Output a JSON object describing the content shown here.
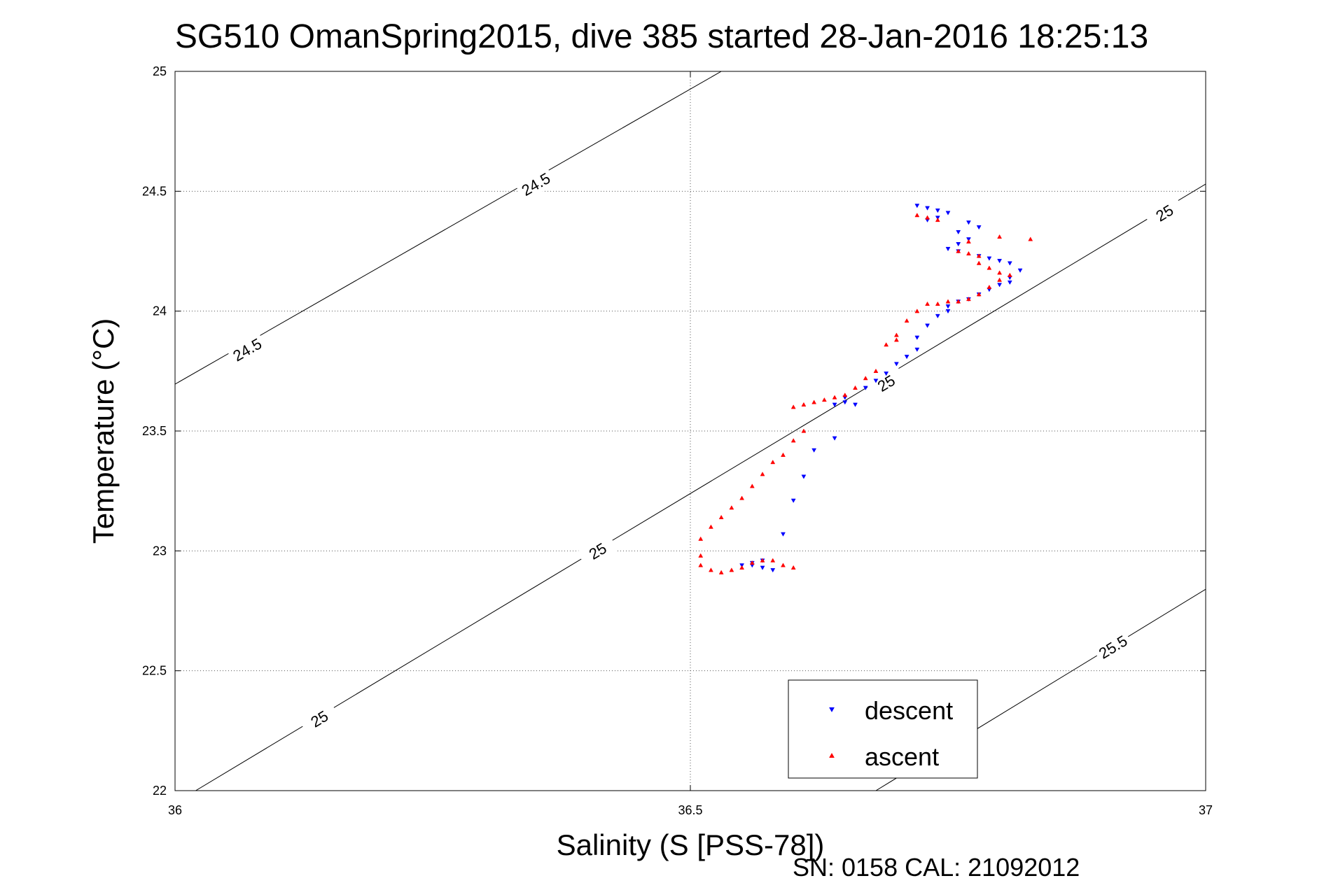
{
  "chart_data": {
    "type": "scatter",
    "title": "SG510 OmanSpring2015, dive 385 started 28-Jan-2016 18:25:13",
    "xlabel": "Salinity (S [PSS-78])",
    "ylabel": "Temperature (°C)",
    "xlim": [
      36,
      37
    ],
    "ylim": [
      22,
      25
    ],
    "xticks": [
      36,
      36.5,
      37
    ],
    "yticks": [
      22,
      22.5,
      23,
      23.5,
      24,
      24.5,
      25
    ],
    "xtick_labels": [
      "36",
      "36.5",
      "37"
    ],
    "ytick_labels": [
      "22",
      "22.5",
      "23",
      "23.5",
      "24",
      "24.5",
      "25"
    ],
    "grid": true,
    "legend_position": "bottom-right",
    "footer": "SN: 0158  CAL: 21092012",
    "density_contours": [
      {
        "label": "24.5",
        "points": [
          [
            35.88,
            23.4
          ],
          [
            36.53,
            25.0
          ]
        ],
        "label_positions": [
          [
            36.07,
            23.84
          ],
          [
            36.35,
            24.53
          ]
        ]
      },
      {
        "label": "25",
        "points": [
          [
            36.02,
            22.0
          ],
          [
            37.0,
            24.53
          ]
        ],
        "label_positions": [
          [
            36.14,
            22.3
          ],
          [
            36.41,
            23.0
          ],
          [
            36.69,
            23.7
          ],
          [
            36.96,
            24.41
          ]
        ]
      },
      {
        "label": "25.5",
        "points": [
          [
            36.68,
            22.0
          ],
          [
            37.0,
            22.84
          ]
        ],
        "label_positions": [
          [
            36.91,
            22.6
          ]
        ]
      }
    ],
    "series": [
      {
        "name": "descent",
        "color": "#0000ff",
        "marker": "triangle-down",
        "points": [
          [
            36.72,
            24.44
          ],
          [
            36.73,
            24.43
          ],
          [
            36.74,
            24.42
          ],
          [
            36.75,
            24.41
          ],
          [
            36.74,
            24.39
          ],
          [
            36.73,
            24.38
          ],
          [
            36.77,
            24.37
          ],
          [
            36.78,
            24.35
          ],
          [
            36.76,
            24.33
          ],
          [
            36.77,
            24.3
          ],
          [
            36.76,
            24.28
          ],
          [
            36.75,
            24.26
          ],
          [
            36.76,
            24.25
          ],
          [
            36.78,
            24.23
          ],
          [
            36.79,
            24.22
          ],
          [
            36.8,
            24.21
          ],
          [
            36.81,
            24.2
          ],
          [
            36.82,
            24.17
          ],
          [
            36.81,
            24.14
          ],
          [
            36.81,
            24.12
          ],
          [
            36.8,
            24.11
          ],
          [
            36.79,
            24.09
          ],
          [
            36.78,
            24.07
          ],
          [
            36.77,
            24.05
          ],
          [
            36.76,
            24.04
          ],
          [
            36.75,
            24.02
          ],
          [
            36.75,
            24.0
          ],
          [
            36.74,
            23.98
          ],
          [
            36.73,
            23.94
          ],
          [
            36.72,
            23.89
          ],
          [
            36.72,
            23.84
          ],
          [
            36.71,
            23.81
          ],
          [
            36.7,
            23.78
          ],
          [
            36.69,
            23.74
          ],
          [
            36.68,
            23.71
          ],
          [
            36.67,
            23.68
          ],
          [
            36.65,
            23.62
          ],
          [
            36.66,
            23.61
          ],
          [
            36.64,
            23.61
          ],
          [
            36.65,
            23.64
          ],
          [
            36.64,
            23.47
          ],
          [
            36.62,
            23.42
          ],
          [
            36.61,
            23.31
          ],
          [
            36.6,
            23.21
          ],
          [
            36.59,
            23.07
          ],
          [
            36.57,
            22.96
          ],
          [
            36.56,
            22.95
          ],
          [
            36.55,
            22.94
          ],
          [
            36.57,
            22.93
          ],
          [
            36.58,
            22.92
          ],
          [
            36.56,
            22.94
          ]
        ]
      },
      {
        "name": "ascent",
        "color": "#ff0000",
        "marker": "triangle-up",
        "points": [
          [
            36.72,
            24.4
          ],
          [
            36.73,
            24.39
          ],
          [
            36.74,
            24.38
          ],
          [
            36.8,
            24.31
          ],
          [
            36.83,
            24.3
          ],
          [
            36.77,
            24.29
          ],
          [
            36.76,
            24.25
          ],
          [
            36.77,
            24.24
          ],
          [
            36.78,
            24.23
          ],
          [
            36.78,
            24.2
          ],
          [
            36.79,
            24.18
          ],
          [
            36.8,
            24.16
          ],
          [
            36.81,
            24.15
          ],
          [
            36.8,
            24.13
          ],
          [
            36.79,
            24.1
          ],
          [
            36.78,
            24.07
          ],
          [
            36.77,
            24.05
          ],
          [
            36.76,
            24.04
          ],
          [
            36.75,
            24.04
          ],
          [
            36.74,
            24.03
          ],
          [
            36.73,
            24.03
          ],
          [
            36.72,
            24.0
          ],
          [
            36.71,
            23.96
          ],
          [
            36.7,
            23.9
          ],
          [
            36.7,
            23.88
          ],
          [
            36.69,
            23.86
          ],
          [
            36.68,
            23.75
          ],
          [
            36.67,
            23.72
          ],
          [
            36.66,
            23.68
          ],
          [
            36.65,
            23.65
          ],
          [
            36.64,
            23.64
          ],
          [
            36.63,
            23.63
          ],
          [
            36.62,
            23.62
          ],
          [
            36.61,
            23.61
          ],
          [
            36.6,
            23.6
          ],
          [
            36.61,
            23.5
          ],
          [
            36.6,
            23.46
          ],
          [
            36.59,
            23.4
          ],
          [
            36.58,
            23.37
          ],
          [
            36.57,
            23.32
          ],
          [
            36.56,
            23.27
          ],
          [
            36.55,
            23.22
          ],
          [
            36.54,
            23.18
          ],
          [
            36.53,
            23.14
          ],
          [
            36.52,
            23.1
          ],
          [
            36.51,
            23.05
          ],
          [
            36.51,
            22.98
          ],
          [
            36.51,
            22.94
          ],
          [
            36.52,
            22.92
          ],
          [
            36.53,
            22.91
          ],
          [
            36.54,
            22.92
          ],
          [
            36.55,
            22.93
          ],
          [
            36.56,
            22.95
          ],
          [
            36.57,
            22.96
          ],
          [
            36.58,
            22.96
          ],
          [
            36.59,
            22.94
          ],
          [
            36.6,
            22.93
          ]
        ]
      }
    ]
  }
}
